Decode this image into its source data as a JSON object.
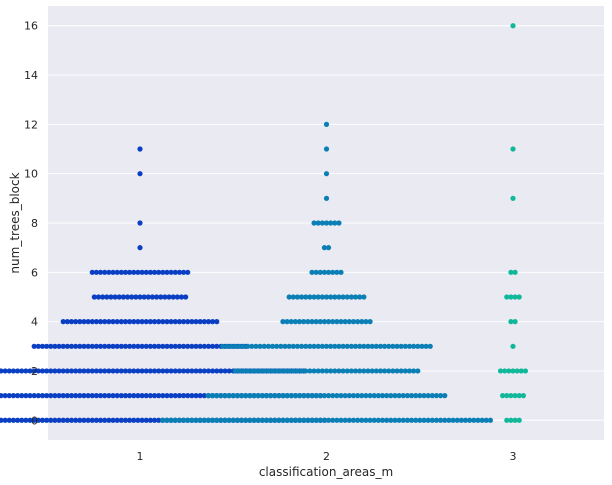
{
  "chart_data": {
    "type": "scatter",
    "subtype": "swarm",
    "title": "",
    "xlabel": "classification_areas_m",
    "ylabel": "num_trees_block",
    "categories": [
      "1",
      "2",
      "3"
    ],
    "ylim": [
      -0.8,
      16.8
    ],
    "yticks": [
      0,
      2,
      4,
      6,
      8,
      10,
      12,
      14,
      16
    ],
    "grid": true,
    "background": "#eaeaf2",
    "category_colors": [
      "#0a3fc4",
      "#0a7fb5",
      "#10b89a"
    ],
    "series": [
      {
        "category": "1",
        "value_counts": [
          {
            "y": 0,
            "count": 90
          },
          {
            "y": 1,
            "count": 88
          },
          {
            "y": 2,
            "count": 80
          },
          {
            "y": 3,
            "count": 52
          },
          {
            "y": 4,
            "count": 38
          },
          {
            "y": 5,
            "count": 23
          },
          {
            "y": 6,
            "count": 24
          },
          {
            "y": 7,
            "count": 1
          },
          {
            "y": 8,
            "count": 1
          },
          {
            "y": 10,
            "count": 1
          },
          {
            "y": 11,
            "count": 1
          }
        ]
      },
      {
        "category": "2",
        "value_counts": [
          {
            "y": 0,
            "count": 80
          },
          {
            "y": 1,
            "count": 58
          },
          {
            "y": 2,
            "count": 45
          },
          {
            "y": 3,
            "count": 51
          },
          {
            "y": 4,
            "count": 22
          },
          {
            "y": 5,
            "count": 19
          },
          {
            "y": 6,
            "count": 8
          },
          {
            "y": 7,
            "count": 2
          },
          {
            "y": 8,
            "count": 7
          },
          {
            "y": 9,
            "count": 1
          },
          {
            "y": 10,
            "count": 1
          },
          {
            "y": 11,
            "count": 1
          },
          {
            "y": 12,
            "count": 1
          }
        ]
      },
      {
        "category": "3",
        "value_counts": [
          {
            "y": 0,
            "count": 4
          },
          {
            "y": 1,
            "count": 6
          },
          {
            "y": 2,
            "count": 7
          },
          {
            "y": 3,
            "count": 1
          },
          {
            "y": 4,
            "count": 2
          },
          {
            "y": 5,
            "count": 4
          },
          {
            "y": 6,
            "count": 2
          },
          {
            "y": 9,
            "count": 1
          },
          {
            "y": 11,
            "count": 1
          },
          {
            "y": 16,
            "count": 1
          }
        ]
      }
    ]
  }
}
